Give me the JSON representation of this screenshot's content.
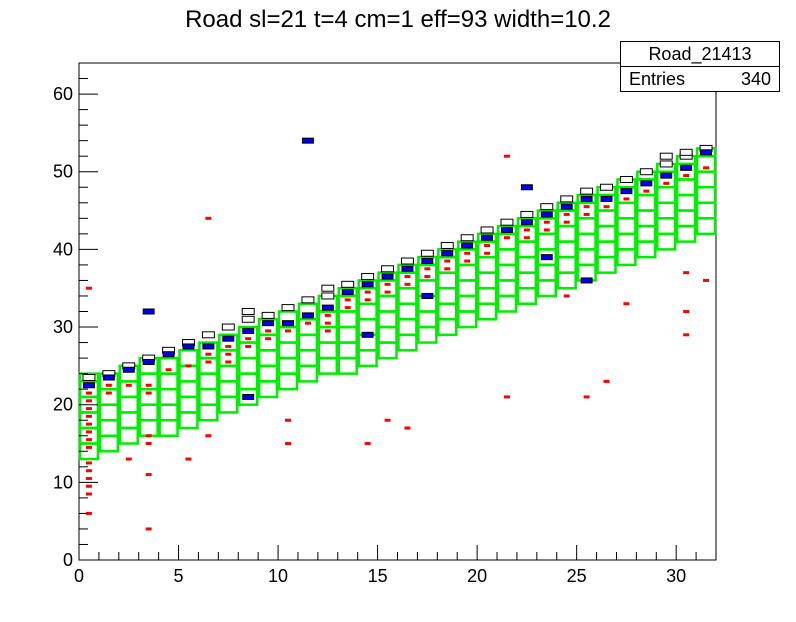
{
  "chart_data": {
    "type": "heatmap",
    "title": "Road sl=21 t=4 cm=1 eff=93 width=10.2",
    "xlim": [
      0,
      32
    ],
    "ylim": [
      0,
      64
    ],
    "xticks": [
      0,
      5,
      10,
      15,
      20,
      25,
      30
    ],
    "yticks": [
      0,
      10,
      20,
      30,
      40,
      50,
      60
    ],
    "grid": false,
    "stats": {
      "name": "Road_21413",
      "entries_label": "Entries",
      "entries": "340"
    },
    "road": {
      "color": "#00ee00",
      "columns": [
        {
          "x": 0,
          "ymin": 13,
          "ymax": 24
        },
        {
          "x": 1,
          "ymin": 14,
          "ymax": 24
        },
        {
          "x": 2,
          "ymin": 15,
          "ymax": 25
        },
        {
          "x": 3,
          "ymin": 16,
          "ymax": 26
        },
        {
          "x": 4,
          "ymin": 16,
          "ymax": 26
        },
        {
          "x": 5,
          "ymin": 17,
          "ymax": 27
        },
        {
          "x": 6,
          "ymin": 18,
          "ymax": 28
        },
        {
          "x": 7,
          "ymin": 19,
          "ymax": 29
        },
        {
          "x": 8,
          "ymin": 20,
          "ymax": 30
        },
        {
          "x": 9,
          "ymin": 21,
          "ymax": 31
        },
        {
          "x": 10,
          "ymin": 22,
          "ymax": 32
        },
        {
          "x": 11,
          "ymin": 23,
          "ymax": 33
        },
        {
          "x": 12,
          "ymin": 24,
          "ymax": 34
        },
        {
          "x": 13,
          "ymin": 24,
          "ymax": 35
        },
        {
          "x": 14,
          "ymin": 25,
          "ymax": 36
        },
        {
          "x": 15,
          "ymin": 26,
          "ymax": 37
        },
        {
          "x": 16,
          "ymin": 27,
          "ymax": 38
        },
        {
          "x": 17,
          "ymin": 28,
          "ymax": 39
        },
        {
          "x": 18,
          "ymin": 29,
          "ymax": 40
        },
        {
          "x": 19,
          "ymin": 30,
          "ymax": 41
        },
        {
          "x": 20,
          "ymin": 31,
          "ymax": 42
        },
        {
          "x": 21,
          "ymin": 32,
          "ymax": 43
        },
        {
          "x": 22,
          "ymin": 33,
          "ymax": 44
        },
        {
          "x": 23,
          "ymin": 34,
          "ymax": 45
        },
        {
          "x": 24,
          "ymin": 35,
          "ymax": 46
        },
        {
          "x": 25,
          "ymin": 36,
          "ymax": 47
        },
        {
          "x": 26,
          "ymin": 37,
          "ymax": 48
        },
        {
          "x": 27,
          "ymin": 38,
          "ymax": 49
        },
        {
          "x": 28,
          "ymin": 39,
          "ymax": 50
        },
        {
          "x": 29,
          "ymin": 40,
          "ymax": 51
        },
        {
          "x": 30,
          "ymin": 41,
          "ymax": 52
        },
        {
          "x": 31,
          "ymin": 42,
          "ymax": 53
        }
      ]
    },
    "blue_hits": [
      {
        "x": 0,
        "y": 22
      },
      {
        "x": 1,
        "y": 23
      },
      {
        "x": 2,
        "y": 24
      },
      {
        "x": 3,
        "y": 25
      },
      {
        "x": 4,
        "y": 26
      },
      {
        "x": 5,
        "y": 27
      },
      {
        "x": 6,
        "y": 27
      },
      {
        "x": 7,
        "y": 28
      },
      {
        "x": 8,
        "y": 29
      },
      {
        "x": 9,
        "y": 30
      },
      {
        "x": 10,
        "y": 30
      },
      {
        "x": 11,
        "y": 31
      },
      {
        "x": 12,
        "y": 32
      },
      {
        "x": 13,
        "y": 34
      },
      {
        "x": 14,
        "y": 35
      },
      {
        "x": 15,
        "y": 36
      },
      {
        "x": 16,
        "y": 37
      },
      {
        "x": 17,
        "y": 38
      },
      {
        "x": 18,
        "y": 39
      },
      {
        "x": 19,
        "y": 40
      },
      {
        "x": 20,
        "y": 41
      },
      {
        "x": 21,
        "y": 42
      },
      {
        "x": 22,
        "y": 43
      },
      {
        "x": 23,
        "y": 44
      },
      {
        "x": 24,
        "y": 45
      },
      {
        "x": 25,
        "y": 46
      },
      {
        "x": 26,
        "y": 46
      },
      {
        "x": 27,
        "y": 47
      },
      {
        "x": 28,
        "y": 48
      },
      {
        "x": 29,
        "y": 49
      },
      {
        "x": 30,
        "y": 50
      },
      {
        "x": 31,
        "y": 52
      },
      {
        "x": 11,
        "y": 53.5
      },
      {
        "x": 3,
        "y": 31.5
      },
      {
        "x": 22,
        "y": 47.5
      },
      {
        "x": 25,
        "y": 35.5
      },
      {
        "x": 8,
        "y": 20.5
      },
      {
        "x": 17,
        "y": 33.5
      },
      {
        "x": 14,
        "y": 28.5
      },
      {
        "x": 23,
        "y": 38.5
      }
    ],
    "red_hits": [
      {
        "x": 0,
        "y": 21
      },
      {
        "x": 0,
        "y": 20
      },
      {
        "x": 0,
        "y": 19
      },
      {
        "x": 0,
        "y": 18
      },
      {
        "x": 0,
        "y": 17
      },
      {
        "x": 0,
        "y": 16
      },
      {
        "x": 0,
        "y": 15
      },
      {
        "x": 0,
        "y": 14
      },
      {
        "x": 0,
        "y": 12
      },
      {
        "x": 0,
        "y": 11
      },
      {
        "x": 0,
        "y": 10
      },
      {
        "x": 0,
        "y": 9
      },
      {
        "x": 0,
        "y": 8
      },
      {
        "x": 0,
        "y": 5.5
      },
      {
        "x": 0,
        "y": 34.5
      },
      {
        "x": 1,
        "y": 22
      },
      {
        "x": 1,
        "y": 21
      },
      {
        "x": 2,
        "y": 12.5
      },
      {
        "x": 2,
        "y": 22
      },
      {
        "x": 3,
        "y": 22
      },
      {
        "x": 3,
        "y": 21
      },
      {
        "x": 3,
        "y": 15.5
      },
      {
        "x": 3,
        "y": 14.5
      },
      {
        "x": 3,
        "y": 10.5
      },
      {
        "x": 3,
        "y": 3.5
      },
      {
        "x": 4,
        "y": 24
      },
      {
        "x": 5,
        "y": 24.5
      },
      {
        "x": 5,
        "y": 12.5
      },
      {
        "x": 6,
        "y": 26
      },
      {
        "x": 6,
        "y": 25
      },
      {
        "x": 6,
        "y": 15.5
      },
      {
        "x": 6,
        "y": 43.5
      },
      {
        "x": 7,
        "y": 27
      },
      {
        "x": 7,
        "y": 26
      },
      {
        "x": 7,
        "y": 25
      },
      {
        "x": 8,
        "y": 28
      },
      {
        "x": 8,
        "y": 27
      },
      {
        "x": 9,
        "y": 29
      },
      {
        "x": 9,
        "y": 28
      },
      {
        "x": 10,
        "y": 29
      },
      {
        "x": 10,
        "y": 17.5
      },
      {
        "x": 10,
        "y": 14.5
      },
      {
        "x": 11,
        "y": 31
      },
      {
        "x": 11,
        "y": 30
      },
      {
        "x": 12,
        "y": 31
      },
      {
        "x": 12,
        "y": 30
      },
      {
        "x": 12,
        "y": 29
      },
      {
        "x": 13,
        "y": 33
      },
      {
        "x": 13,
        "y": 32
      },
      {
        "x": 14,
        "y": 34
      },
      {
        "x": 14,
        "y": 33
      },
      {
        "x": 14,
        "y": 14.5
      },
      {
        "x": 15,
        "y": 35
      },
      {
        "x": 15,
        "y": 34
      },
      {
        "x": 15,
        "y": 17.5
      },
      {
        "x": 16,
        "y": 36
      },
      {
        "x": 16,
        "y": 35
      },
      {
        "x": 16,
        "y": 16.5
      },
      {
        "x": 17,
        "y": 37
      },
      {
        "x": 17,
        "y": 36
      },
      {
        "x": 18,
        "y": 38
      },
      {
        "x": 18,
        "y": 37
      },
      {
        "x": 19,
        "y": 39
      },
      {
        "x": 19,
        "y": 38
      },
      {
        "x": 20,
        "y": 40
      },
      {
        "x": 20,
        "y": 39
      },
      {
        "x": 21,
        "y": 41
      },
      {
        "x": 21,
        "y": 51.5
      },
      {
        "x": 21,
        "y": 20.5
      },
      {
        "x": 22,
        "y": 42
      },
      {
        "x": 22,
        "y": 41
      },
      {
        "x": 23,
        "y": 43
      },
      {
        "x": 23,
        "y": 42
      },
      {
        "x": 24,
        "y": 44
      },
      {
        "x": 24,
        "y": 43
      },
      {
        "x": 24,
        "y": 33.5
      },
      {
        "x": 25,
        "y": 45
      },
      {
        "x": 25,
        "y": 44
      },
      {
        "x": 25,
        "y": 20.5
      },
      {
        "x": 26,
        "y": 45
      },
      {
        "x": 26,
        "y": 22.5
      },
      {
        "x": 27,
        "y": 46
      },
      {
        "x": 27,
        "y": 32.5
      },
      {
        "x": 28,
        "y": 47
      },
      {
        "x": 29,
        "y": 48
      },
      {
        "x": 29,
        "y": 49
      },
      {
        "x": 30,
        "y": 49
      },
      {
        "x": 30,
        "y": 50
      },
      {
        "x": 30,
        "y": 36.5
      },
      {
        "x": 30,
        "y": 31.5
      },
      {
        "x": 30,
        "y": 28.5
      },
      {
        "x": 31,
        "y": 50
      },
      {
        "x": 31,
        "y": 35.5
      }
    ],
    "outline_hits": [
      {
        "x": 0,
        "y": 23
      },
      {
        "x": 1,
        "y": 23.5
      },
      {
        "x": 2,
        "y": 24.5
      },
      {
        "x": 3,
        "y": 25.5
      },
      {
        "x": 4,
        "y": 26.5
      },
      {
        "x": 5,
        "y": 27.5
      },
      {
        "x": 6,
        "y": 28.5
      },
      {
        "x": 7,
        "y": 29.5
      },
      {
        "x": 8,
        "y": 30.5
      },
      {
        "x": 9,
        "y": 31
      },
      {
        "x": 10,
        "y": 32
      },
      {
        "x": 11,
        "y": 33
      },
      {
        "x": 12,
        "y": 33.5
      },
      {
        "x": 13,
        "y": 35
      },
      {
        "x": 14,
        "y": 36
      },
      {
        "x": 15,
        "y": 37
      },
      {
        "x": 16,
        "y": 38
      },
      {
        "x": 17,
        "y": 39
      },
      {
        "x": 18,
        "y": 40
      },
      {
        "x": 19,
        "y": 41
      },
      {
        "x": 20,
        "y": 42
      },
      {
        "x": 21,
        "y": 43
      },
      {
        "x": 22,
        "y": 44
      },
      {
        "x": 23,
        "y": 45
      },
      {
        "x": 24,
        "y": 46
      },
      {
        "x": 25,
        "y": 47
      },
      {
        "x": 26,
        "y": 47.5
      },
      {
        "x": 27,
        "y": 48.5
      },
      {
        "x": 28,
        "y": 49.5
      },
      {
        "x": 29,
        "y": 50.5
      },
      {
        "x": 30,
        "y": 51.5
      },
      {
        "x": 31,
        "y": 52.5
      },
      {
        "x": 30,
        "y": 52
      },
      {
        "x": 29,
        "y": 51.5
      },
      {
        "x": 8,
        "y": 31.5
      },
      {
        "x": 12,
        "y": 34.5
      }
    ]
  }
}
